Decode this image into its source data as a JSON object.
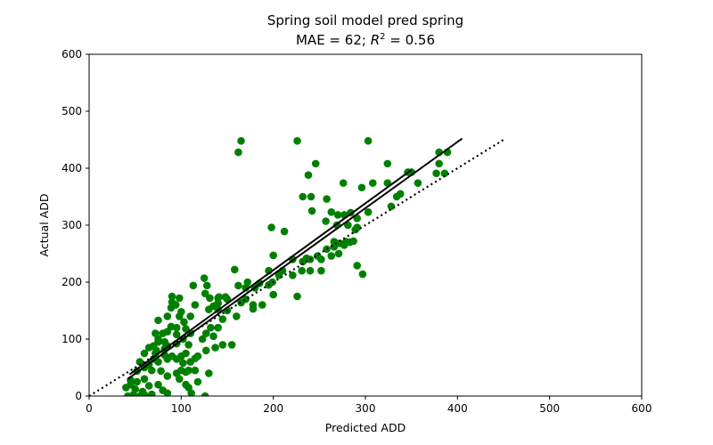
{
  "chart_data": {
    "type": "scatter",
    "title": "Spring soil model pred spring",
    "subtitle_parts": {
      "mae_text": "MAE = 62; ",
      "r_symbol": "R",
      "r_exponent": "2",
      "r_value_text": " = 0.56"
    },
    "xlabel": "Predicted ADD",
    "ylabel": "Actual ADD",
    "xlim": [
      0,
      600
    ],
    "ylim": [
      0,
      600
    ],
    "xticks": [
      0,
      100,
      200,
      300,
      400,
      500,
      600
    ],
    "yticks": [
      0,
      100,
      200,
      300,
      400,
      500,
      600
    ],
    "grid": false,
    "colors": {
      "points": "#008000",
      "fit_line": "#000000",
      "identity_line": "#000000"
    },
    "identity_line": {
      "style": "dotted",
      "x": [
        0,
        450
      ],
      "y": [
        0,
        450
      ]
    },
    "fit_line": {
      "style": "solid",
      "x": [
        42,
        405
      ],
      "y": [
        30,
        452
      ]
    },
    "points": [
      [
        165,
        448
      ],
      [
        226,
        448
      ],
      [
        303,
        448
      ],
      [
        162,
        428
      ],
      [
        389,
        428
      ],
      [
        380,
        428
      ],
      [
        246,
        408
      ],
      [
        324,
        408
      ],
      [
        380,
        408
      ],
      [
        346,
        393
      ],
      [
        350,
        393
      ],
      [
        377,
        391
      ],
      [
        386,
        391
      ],
      [
        238,
        388
      ],
      [
        276,
        374
      ],
      [
        308,
        374
      ],
      [
        357,
        374
      ],
      [
        324,
        374
      ],
      [
        296,
        366
      ],
      [
        232,
        350
      ],
      [
        241,
        350
      ],
      [
        258,
        346
      ],
      [
        338,
        355
      ],
      [
        334,
        350
      ],
      [
        328,
        333
      ],
      [
        242,
        325
      ],
      [
        263,
        323
      ],
      [
        270,
        318
      ],
      [
        277,
        318
      ],
      [
        284,
        322
      ],
      [
        291,
        312
      ],
      [
        303,
        323
      ],
      [
        257,
        307
      ],
      [
        269,
        300
      ],
      [
        281,
        300
      ],
      [
        289,
        292
      ],
      [
        291,
        296
      ],
      [
        198,
        296
      ],
      [
        212,
        289
      ],
      [
        279,
        271
      ],
      [
        266,
        271
      ],
      [
        272,
        268
      ],
      [
        283,
        270
      ],
      [
        287,
        272
      ],
      [
        277,
        265
      ],
      [
        266,
        262
      ],
      [
        258,
        258
      ],
      [
        263,
        246
      ],
      [
        271,
        250
      ],
      [
        248,
        246
      ],
      [
        236,
        242
      ],
      [
        240,
        240
      ],
      [
        252,
        240
      ],
      [
        232,
        236
      ],
      [
        221,
        240
      ],
      [
        240,
        220
      ],
      [
        252,
        220
      ],
      [
        231,
        220
      ],
      [
        291,
        229
      ],
      [
        297,
        214
      ],
      [
        226,
        175
      ],
      [
        200,
        247
      ],
      [
        195,
        220
      ],
      [
        210,
        220
      ],
      [
        206,
        212
      ],
      [
        221,
        212
      ],
      [
        199,
        200
      ],
      [
        185,
        198
      ],
      [
        195,
        195
      ],
      [
        158,
        222
      ],
      [
        172,
        200
      ],
      [
        162,
        194
      ],
      [
        170,
        190
      ],
      [
        180,
        190
      ],
      [
        170,
        170
      ],
      [
        165,
        164
      ],
      [
        178,
        160
      ],
      [
        188,
        160
      ],
      [
        178,
        153
      ],
      [
        200,
        178
      ],
      [
        150,
        170
      ],
      [
        150,
        150
      ],
      [
        160,
        140
      ],
      [
        141,
        174
      ],
      [
        131,
        172
      ],
      [
        140,
        172
      ],
      [
        148,
        174
      ],
      [
        130,
        152
      ],
      [
        125,
        207
      ],
      [
        128,
        194
      ],
      [
        126,
        180
      ],
      [
        113,
        194
      ],
      [
        140,
        163
      ],
      [
        115,
        160
      ],
      [
        135,
        158
      ],
      [
        140,
        152
      ],
      [
        132,
        120
      ],
      [
        145,
        135
      ],
      [
        140,
        120
      ],
      [
        110,
        140
      ],
      [
        127,
        110
      ],
      [
        123,
        100
      ],
      [
        135,
        105
      ],
      [
        110,
        110
      ],
      [
        98,
        140
      ],
      [
        89,
        122
      ],
      [
        95,
        120
      ],
      [
        85,
        113
      ],
      [
        95,
        108
      ],
      [
        105,
        118
      ],
      [
        103,
        130
      ],
      [
        82,
        95
      ],
      [
        85,
        88
      ],
      [
        95,
        92
      ],
      [
        102,
        100
      ],
      [
        108,
        90
      ],
      [
        90,
        165
      ],
      [
        89,
        155
      ],
      [
        94,
        160
      ],
      [
        90,
        175
      ],
      [
        98,
        172
      ],
      [
        100,
        148
      ],
      [
        85,
        140
      ],
      [
        75,
        133
      ],
      [
        80,
        110
      ],
      [
        75,
        100
      ],
      [
        72,
        110
      ],
      [
        82,
        83
      ],
      [
        70,
        88
      ],
      [
        75,
        95
      ],
      [
        65,
        85
      ],
      [
        73,
        80
      ],
      [
        72,
        75
      ],
      [
        82,
        72
      ],
      [
        90,
        70
      ],
      [
        85,
        65
      ],
      [
        95,
        65
      ],
      [
        100,
        70
      ],
      [
        105,
        75
      ],
      [
        60,
        75
      ],
      [
        70,
        65
      ],
      [
        75,
        60
      ],
      [
        65,
        55
      ],
      [
        55,
        60
      ],
      [
        60,
        50
      ],
      [
        52,
        44
      ],
      [
        68,
        45
      ],
      [
        78,
        44
      ],
      [
        85,
        35
      ],
      [
        95,
        40
      ],
      [
        100,
        45
      ],
      [
        105,
        42
      ],
      [
        115,
        45
      ],
      [
        130,
        40
      ],
      [
        145,
        90
      ],
      [
        155,
        90
      ],
      [
        137,
        85
      ],
      [
        127,
        80
      ],
      [
        118,
        70
      ],
      [
        115,
        66
      ],
      [
        110,
        60
      ],
      [
        102,
        58
      ],
      [
        108,
        45
      ],
      [
        98,
        30
      ],
      [
        105,
        20
      ],
      [
        108,
        15
      ],
      [
        111,
        5
      ],
      [
        118,
        25
      ],
      [
        60,
        30
      ],
      [
        52,
        25
      ],
      [
        45,
        20
      ],
      [
        50,
        12
      ],
      [
        58,
        8
      ],
      [
        65,
        18
      ],
      [
        75,
        20
      ],
      [
        80,
        10
      ],
      [
        85,
        5
      ],
      [
        68,
        3
      ],
      [
        60,
        2
      ],
      [
        55,
        0
      ],
      [
        48,
        2
      ],
      [
        42,
        0
      ],
      [
        126,
        0
      ],
      [
        45,
        28
      ],
      [
        40,
        15
      ]
    ]
  }
}
